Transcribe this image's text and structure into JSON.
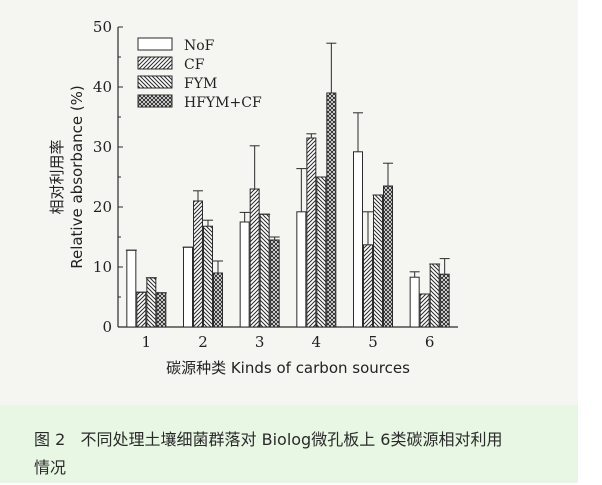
{
  "chart_data": {
    "type": "bar",
    "categories": [
      "1",
      "2",
      "3",
      "4",
      "5",
      "6"
    ],
    "series": [
      {
        "name": "NoF",
        "pattern": "none",
        "values": [
          12.8,
          13.3,
          17.5,
          19.2,
          29.2,
          8.3
        ],
        "errors": [
          0.0,
          0.0,
          1.6,
          7.2,
          6.5,
          0.9
        ]
      },
      {
        "name": "CF",
        "pattern": "hatch-right",
        "values": [
          5.8,
          21.0,
          23.0,
          31.5,
          13.7,
          5.5
        ],
        "errors": [
          0.0,
          1.7,
          7.2,
          0.7,
          5.5,
          0.0
        ]
      },
      {
        "name": "FYM",
        "pattern": "hatch-left",
        "values": [
          8.2,
          16.8,
          18.8,
          25.0,
          22.0,
          10.5
        ],
        "errors": [
          0.0,
          1.0,
          0.0,
          0.0,
          0.0,
          0.0
        ]
      },
      {
        "name": "HFYM+CF",
        "pattern": "crosshatch",
        "values": [
          5.7,
          9.0,
          14.5,
          39.0,
          23.5,
          8.8
        ],
        "errors": [
          0.0,
          2.0,
          0.5,
          8.3,
          3.8,
          2.6
        ]
      }
    ],
    "ylim": [
      0,
      50
    ],
    "yticks": [
      0,
      10,
      20,
      30,
      40,
      50
    ],
    "ylabel_cn": "相对利用率",
    "ylabel_en": "Relative absorbance (%)",
    "xlabel": "碳源种类 Kinds of carbon sources",
    "legend_position": "top-left",
    "grid": false,
    "bar_color": "#2b2b2b"
  },
  "caption": {
    "line1": "图 2   不同处理土壤细菌群落对 Biolog微孔板上 6类碳源相对利用",
    "line2": "情况"
  }
}
